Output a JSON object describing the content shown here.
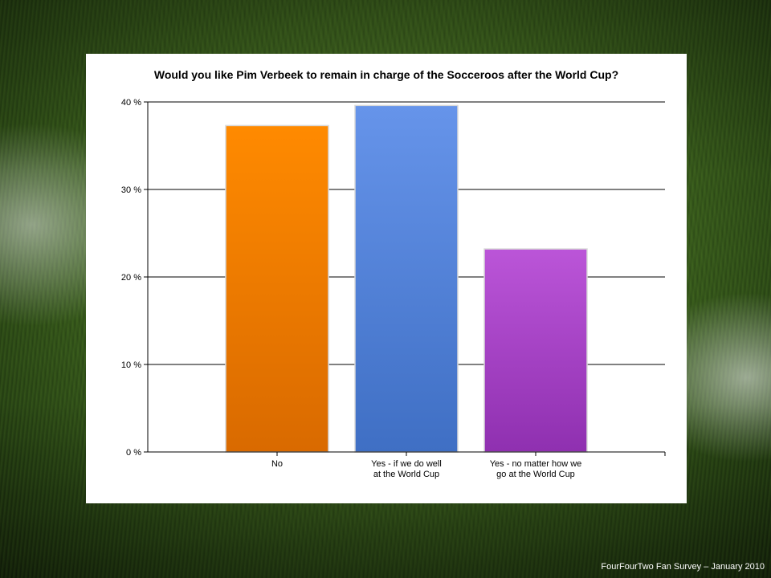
{
  "chart_data": {
    "type": "bar",
    "title": "Would you like Pim Verbeek to remain in charge of the Socceroos after the World Cup?",
    "categories": [
      [
        "No"
      ],
      [
        "Yes - if we do well",
        "at the World Cup"
      ],
      [
        "Yes - no matter how we",
        "go at the World Cup"
      ]
    ],
    "values": [
      37.3,
      39.6,
      23.2
    ],
    "ylim": [
      0,
      40
    ],
    "yticks": [
      0,
      10,
      20,
      30,
      40
    ],
    "ytick_labels": [
      "0 %",
      "10 %",
      "20 %",
      "30 %",
      "40 %"
    ],
    "grid": true,
    "colors": [
      [
        "#ff8a00",
        "#d96a00"
      ],
      [
        "#6694ea",
        "#3f6fc4"
      ],
      [
        "#bb55d8",
        "#8f30b0"
      ]
    ]
  },
  "footer": "FourFourTwo Fan Survey – January 2010"
}
